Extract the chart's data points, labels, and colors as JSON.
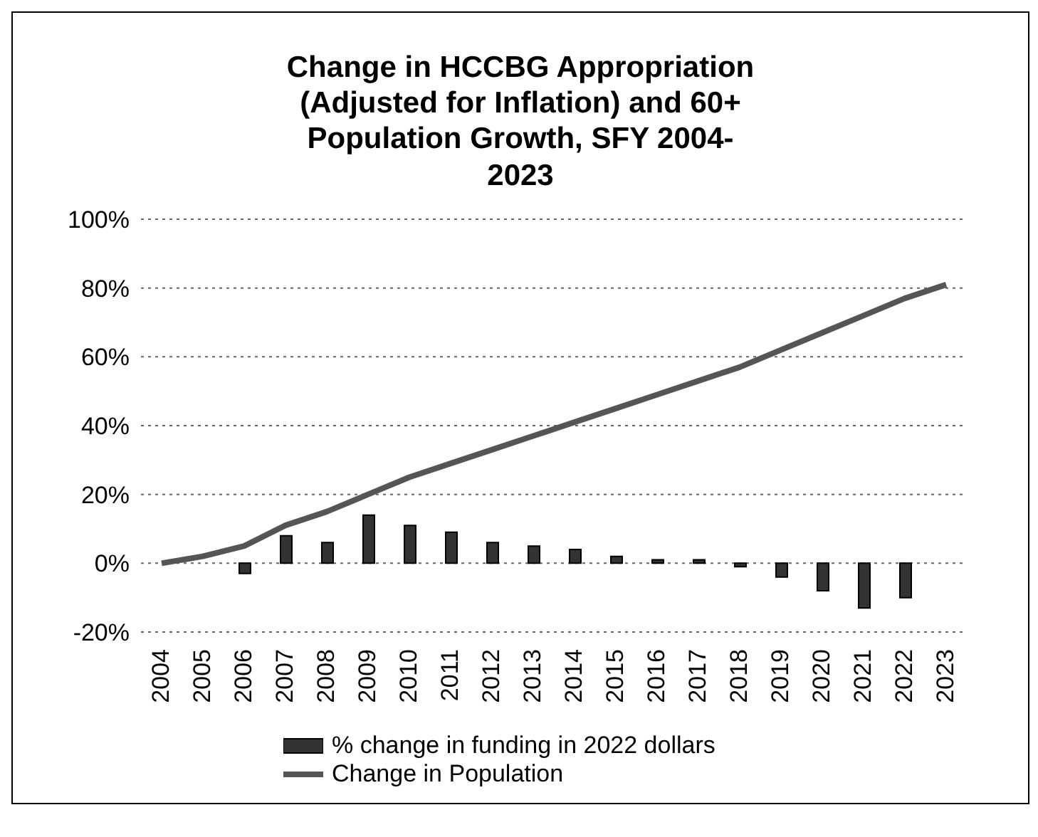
{
  "chart_data": {
    "type": "bar",
    "title": "Change in HCCBG Appropriation (Adjusted for Inflation) and 60+ Population Growth, SFY 2004-2023",
    "categories": [
      "2004",
      "2005",
      "2006",
      "2007",
      "2008",
      "2009",
      "2010",
      "2011",
      "2012",
      "2013",
      "2014",
      "2015",
      "2016",
      "2017",
      "2018",
      "2019",
      "2020",
      "2021",
      "2022",
      "2023"
    ],
    "series": [
      {
        "name": "% change in funding in 2022 dollars",
        "color": "#333333",
        "values": [
          0,
          0,
          -3,
          8,
          6,
          14,
          11,
          9,
          6,
          5,
          4,
          2,
          1,
          1,
          -1,
          -4,
          -8,
          -13,
          -10,
          null
        ]
      },
      {
        "name": "Change in Population",
        "type": "line",
        "color": "#555555",
        "values": [
          0,
          2,
          5,
          11,
          15,
          20,
          25,
          29,
          33,
          37,
          41,
          45,
          49,
          53,
          57,
          62,
          67,
          72,
          77,
          81
        ]
      }
    ],
    "ylim": [
      -20,
      100
    ],
    "yticks": [
      {
        "value": -20,
        "label": "-20%"
      },
      {
        "value": 0,
        "label": "0%"
      },
      {
        "value": 20,
        "label": "20%"
      },
      {
        "value": 40,
        "label": "40%"
      },
      {
        "value": 60,
        "label": "60%"
      },
      {
        "value": 80,
        "label": "80%"
      },
      {
        "value": 100,
        "label": "100%"
      }
    ],
    "grid": "y",
    "legend": "bottom",
    "marker": "none"
  }
}
